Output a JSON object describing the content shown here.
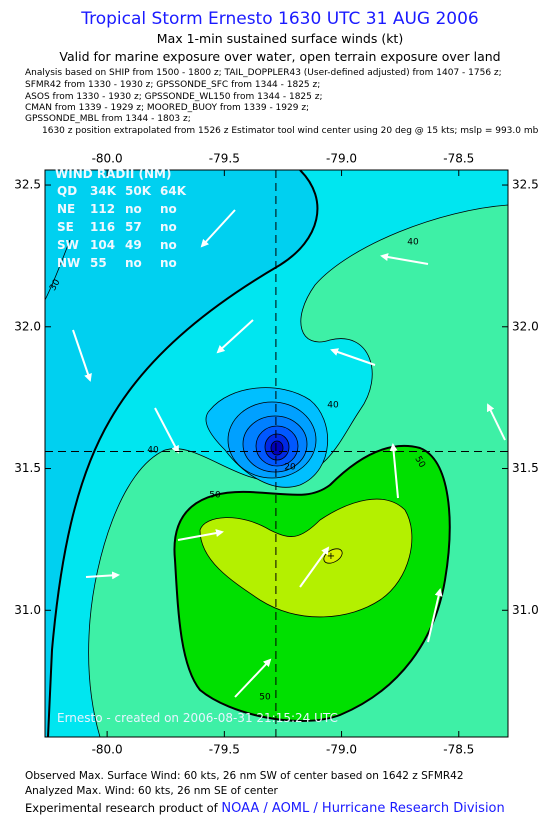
{
  "header": {
    "title": "Tropical Storm Ernesto 1630 UTC 31 AUG 2006",
    "subtitle": "Max 1-min sustained surface winds (kt)",
    "validity": "Valid for marine exposure over water, open terrain exposure over land",
    "analysis_lines": [
      "Analysis based on   SHIP from 1500 - 1800 z;   TAIL_DOPPLER43 (User-defined adjusted) from 1407 - 1756 z;",
      "SFMR42 from 1330 - 1930 z;  GPSSONDE_SFC from 1344 - 1825 z;",
      "ASOS from 1330 - 1930 z;  GPSSONDE_WL150 from 1344 - 1825 z;",
      "CMAN from 1339 - 1929 z;   MOORED_BUOY from 1339 - 1929 z;",
      "GPSSONDE_MBL from 1344 - 1803 z;",
      "1630 z position extrapolated from 1526 z Estimator tool wind center using 20 deg @ 15 kts; mslp = 993.0 mb"
    ]
  },
  "map": {
    "xlim": [
      -80.265,
      -78.29
    ],
    "ylim": [
      30.553,
      32.553
    ],
    "xticks": [
      {
        "value": -80,
        "label": "-80.0"
      },
      {
        "value": -79.5,
        "label": "-79.5"
      },
      {
        "value": -79,
        "label": "-79.0"
      },
      {
        "value": -78.5,
        "label": "-78.5"
      }
    ],
    "yticks": [
      {
        "value": 31,
        "label": "31.0"
      },
      31.5,
      {
        "value": 32,
        "label": "32.0"
      },
      32.5
    ],
    "center": {
      "lon": -79.28,
      "lat": 31.56
    },
    "wind_radii": {
      "title": "WIND RADII (NM)",
      "rows": [
        [
          "QD",
          "34K",
          "50K",
          "64K"
        ],
        [
          "NE",
          "112",
          "no",
          "no"
        ],
        [
          "SE",
          "116",
          "57",
          "no"
        ],
        [
          "SW",
          "104",
          "49",
          "no"
        ],
        [
          "NW",
          "55",
          "no",
          "no"
        ]
      ]
    },
    "contour_labels": [
      "30",
      "40",
      "40",
      "40",
      "50",
      "50",
      "50",
      "20"
    ],
    "watermark": "Ernesto - created on 2006-08-31 21:15:24 UTC"
  },
  "footer": {
    "observed": "Observed Max. Surface Wind: 60 kts, 26 nm SW of center based on 1642 z SFMR42",
    "analyzed": "Analyzed Max. Wind: 60 kts, 26 nm SE of center",
    "credit": "Experimental research product of ",
    "organization": "NOAA / AOML / Hurricane Research Division"
  }
}
